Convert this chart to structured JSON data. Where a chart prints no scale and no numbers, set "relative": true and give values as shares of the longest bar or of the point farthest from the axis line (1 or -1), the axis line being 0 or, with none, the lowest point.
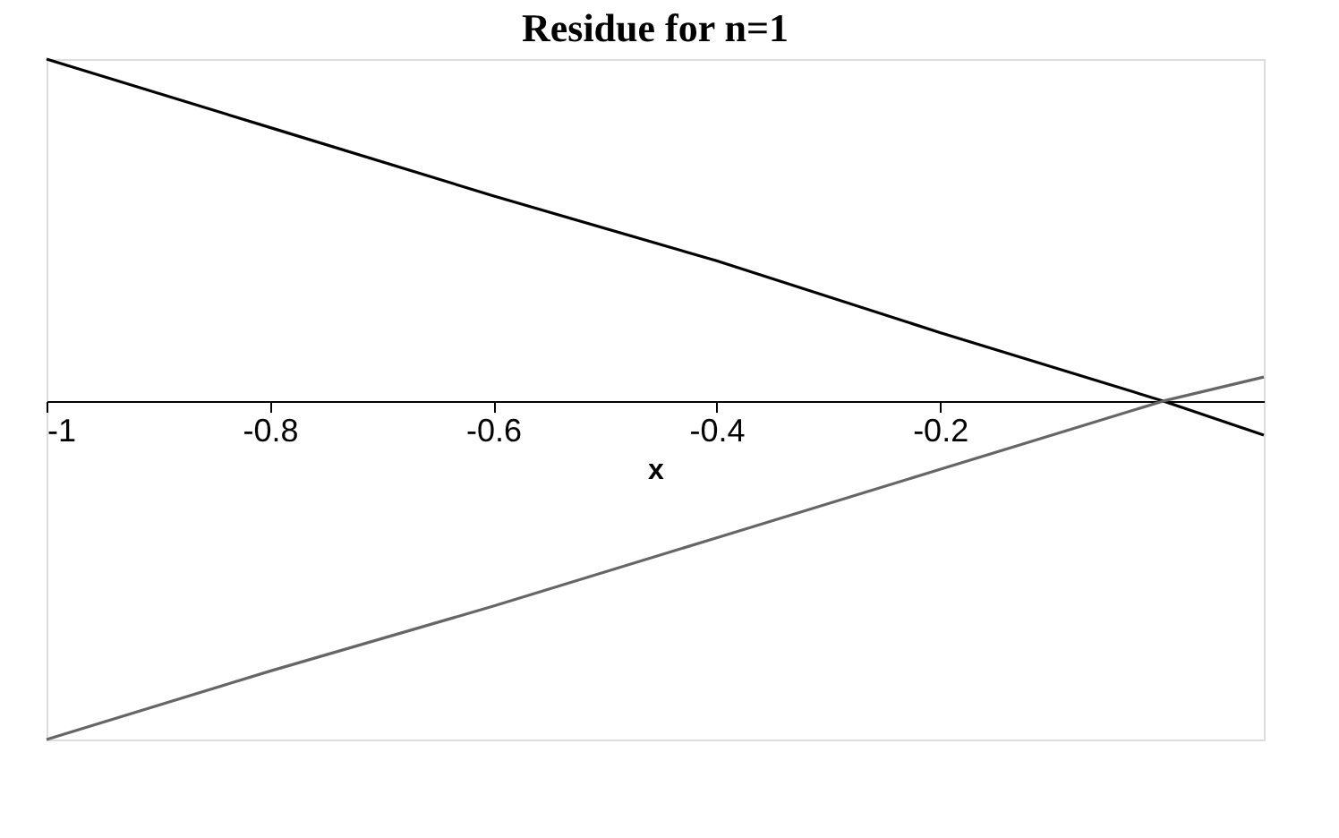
{
  "chart_data": {
    "type": "line",
    "title": "Residue for n=1",
    "xlabel": "x",
    "relative": true,
    "xlim": [
      -1,
      0.09
    ],
    "xticks": [
      -1,
      -0.8,
      -0.6,
      -0.4,
      -0.2
    ],
    "grid": false,
    "marker": "none",
    "line_style": "solid",
    "series": [
      {
        "color": "#000000",
        "x": [
          -1,
          -0.8,
          -0.6,
          -0.4,
          -0.2,
          0,
          0.09
        ],
        "values": [
          1,
          0.8,
          0.6,
          0.41,
          0.2,
          0,
          -0.1
        ]
      },
      {
        "color": "#666666",
        "x": [
          -1,
          -0.8,
          -0.6,
          -0.4,
          -0.2,
          0,
          0.09
        ],
        "values": [
          -0.99,
          -0.79,
          -0.6,
          -0.4,
          -0.2,
          0,
          0.07
        ]
      }
    ]
  }
}
